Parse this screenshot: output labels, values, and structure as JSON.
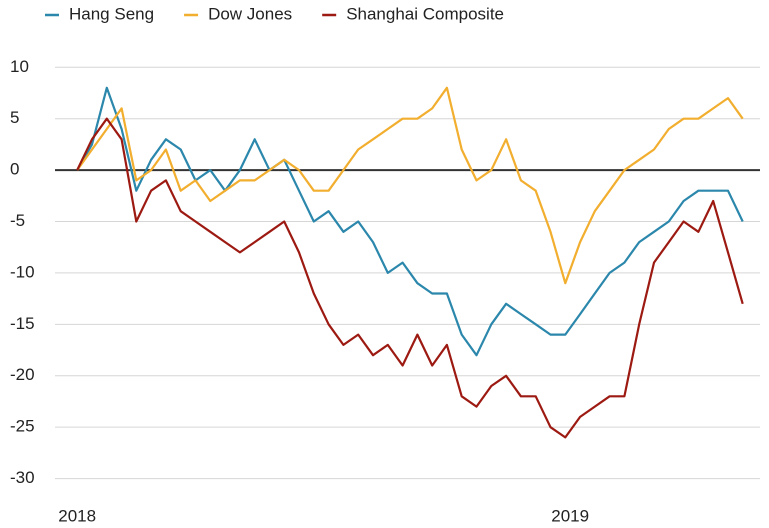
{
  "chart_data": {
    "type": "line",
    "x": [
      2018.0,
      2018.03,
      2018.06,
      2018.09,
      2018.12,
      2018.15,
      2018.18,
      2018.21,
      2018.24,
      2018.27,
      2018.3,
      2018.33,
      2018.36,
      2018.39,
      2018.42,
      2018.45,
      2018.48,
      2018.51,
      2018.54,
      2018.57,
      2018.6,
      2018.63,
      2018.66,
      2018.69,
      2018.72,
      2018.75,
      2018.78,
      2018.81,
      2018.84,
      2018.87,
      2018.9,
      2018.93,
      2018.96,
      2018.99,
      2019.02,
      2019.05,
      2019.08,
      2019.11,
      2019.14,
      2019.17,
      2019.2,
      2019.23,
      2019.26,
      2019.29,
      2019.32,
      2019.35
    ],
    "series": [
      {
        "name": "Hang Seng",
        "color": "#2b87ab",
        "values": [
          0,
          2.5,
          8,
          4,
          -2,
          1,
          3,
          2,
          -1,
          0,
          -2,
          0,
          3,
          0,
          1,
          -2,
          -5,
          -4,
          -6,
          -5,
          -7,
          -10,
          -9,
          -11,
          -12,
          -12,
          -16,
          -18,
          -15,
          -13,
          -14,
          -15,
          -16,
          -16,
          -14,
          -12,
          -10,
          -9,
          -7,
          -6,
          -5,
          -3,
          -2,
          -2,
          -2,
          -5
        ]
      },
      {
        "name": "Dow Jones",
        "color": "#f2ae2e",
        "values": [
          0,
          2,
          4,
          6,
          -1,
          0,
          2,
          -2,
          -1,
          -3,
          -2,
          -1,
          -1,
          0,
          1,
          0,
          -2,
          -2,
          0,
          2,
          3,
          4,
          5,
          5,
          6,
          8,
          2,
          -1,
          0,
          3,
          -1,
          -2,
          -6,
          -11,
          -7,
          -4,
          -2,
          0,
          1,
          2,
          4,
          5,
          5,
          6,
          7,
          5
        ]
      },
      {
        "name": "Shanghai Composite",
        "color": "#9c1a12",
        "values": [
          0,
          3,
          5,
          3,
          -5,
          -2,
          -1,
          -4,
          -5,
          -6,
          -7,
          -8,
          -7,
          -6,
          -5,
          -8,
          -12,
          -15,
          -17,
          -16,
          -18,
          -17,
          -19,
          -16,
          -19,
          -17,
          -22,
          -23,
          -21,
          -20,
          -22,
          -22,
          -25,
          -26,
          -24,
          -23,
          -22,
          -22,
          -15,
          -9,
          -7,
          -5,
          -6,
          -3,
          -8,
          -13
        ]
      }
    ],
    "xlim": [
      2017.955,
      2019.385
    ],
    "xticks": [
      2018,
      2019
    ],
    "ylim": [
      -31.5,
      11
    ],
    "yticks": [
      -30,
      -25,
      -20,
      -15,
      -10,
      -5,
      0,
      5,
      10
    ],
    "grid": true,
    "legend": "top"
  }
}
